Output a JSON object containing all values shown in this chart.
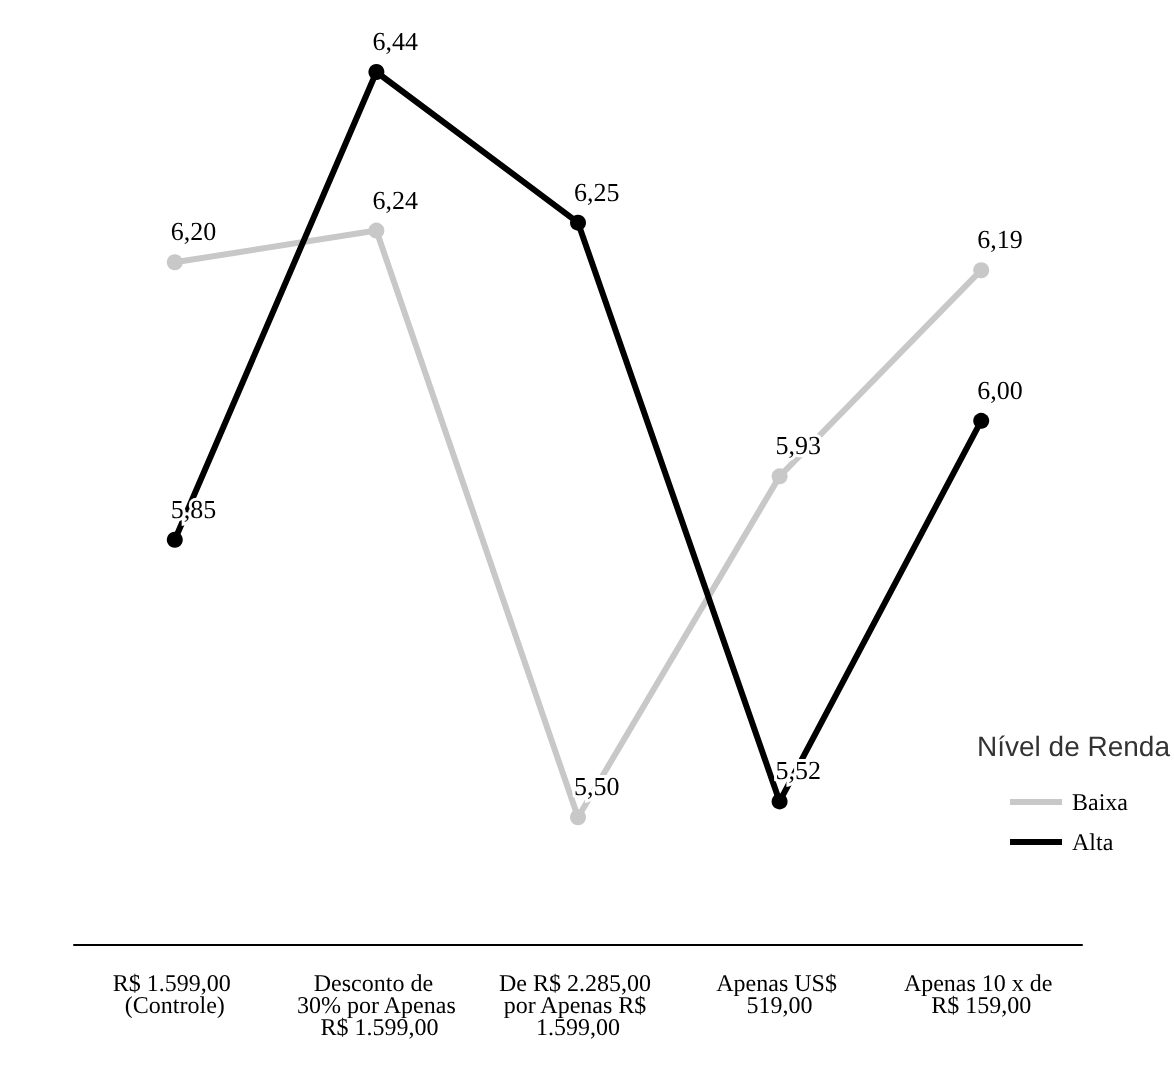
{
  "chart_data": {
    "type": "line",
    "legend_title": "Nível de Renda",
    "legend": "right",
    "marker": "circle",
    "line_style": "solid",
    "grid": false,
    "categories": [
      "R$ 1.599,00 (Controle)",
      "Desconto de 30% por Apenas R$ 1.599,00",
      "De R$ 2.285,00 por Apenas R$ 1.599,00",
      "Apenas US$ 519,00",
      "Apenas 10 x de R$ 159,00"
    ],
    "series": [
      {
        "name": "Baixa",
        "color": "#c8c8c8",
        "values": [
          6.2,
          6.24,
          5.5,
          5.93,
          6.19
        ],
        "value_labels": [
          "6,20",
          "6,24",
          "5,50",
          "5,93",
          "6,19"
        ]
      },
      {
        "name": "Alta",
        "color": "#000000",
        "values": [
          5.85,
          6.44,
          6.25,
          5.52,
          6.0
        ],
        "value_labels": [
          "5,85",
          "6,44",
          "6,25",
          "5,52",
          "6,00"
        ]
      }
    ]
  }
}
